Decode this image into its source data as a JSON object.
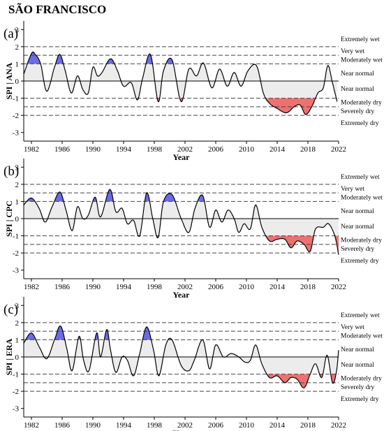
{
  "title": "SÃO FRANCISCO",
  "chart_data": [
    {
      "type": "line",
      "panel_label": "(a)",
      "ylabel": "SPI | ANA",
      "xlabel": "Year",
      "xlim": [
        1981,
        2022
      ],
      "ylim": [
        -3.5,
        3.5
      ],
      "xticks": [
        1982,
        1986,
        1990,
        1994,
        1998,
        2002,
        2006,
        2010,
        2014,
        2018,
        2022
      ],
      "yticks": [
        -3,
        -2,
        -1,
        0,
        1,
        2,
        3
      ],
      "thresholds": [
        2,
        1.5,
        1,
        -1,
        -1.5,
        -2
      ],
      "categories": [
        {
          "label": "Extremely wet",
          "y": 2.45
        },
        {
          "label": "Very wet",
          "y": 1.75
        },
        {
          "label": "Moderately wet",
          "y": 1.25
        },
        {
          "label": "Near normal",
          "y": 0.45
        },
        {
          "label": "Near normal",
          "y": -0.45
        },
        {
          "label": "Moderately dry",
          "y": -1.25
        },
        {
          "label": "Severely dry",
          "y": -1.75
        },
        {
          "label": "Extremely dry",
          "y": -2.45
        }
      ],
      "series": [
        {
          "x": [
            1981.0,
            1982.0,
            1982.5,
            1983.2,
            1984.0,
            1985.0,
            1985.7,
            1986.4,
            1987.2,
            1988.0,
            1988.7,
            1989.4,
            1990.0,
            1990.6,
            1991.2,
            1992.3,
            1993.2,
            1994.0,
            1995.0,
            1995.8,
            1996.5,
            1997.5,
            1998.5,
            1999.2,
            2000.3,
            2001.5,
            2002.5,
            2003.5,
            2004.4,
            2005.5,
            2006.5,
            2007.5,
            2008.4,
            2009.3,
            2010.2,
            2011.3,
            2012.2,
            2013.0,
            2014.0,
            2015.2,
            2016.2,
            2017.0,
            2017.7,
            2018.5,
            2019.3,
            2020.0,
            2020.6,
            2021.2,
            2021.8
          ],
          "values": [
            0.4,
            1.6,
            1.55,
            1.0,
            -0.6,
            0.8,
            1.55,
            0.6,
            -0.7,
            0.3,
            -0.5,
            -0.7,
            0.8,
            0.3,
            0.5,
            1.3,
            0.6,
            -0.3,
            -0.1,
            -1.1,
            0.2,
            1.55,
            -1.2,
            0.6,
            1.25,
            -1.2,
            0.7,
            0.3,
            1.05,
            -0.4,
            0.7,
            -0.3,
            0.5,
            -0.3,
            0.6,
            0.9,
            -0.7,
            -1.3,
            -1.6,
            -1.85,
            -1.5,
            -1.4,
            -1.95,
            -1.5,
            -0.7,
            -0.4,
            0.9,
            -0.1,
            -1.2
          ]
        }
      ]
    },
    {
      "type": "line",
      "panel_label": "(b)",
      "ylabel": "SPI | CPC",
      "xlabel": "Year",
      "xlim": [
        1981,
        2022
      ],
      "ylim": [
        -3.5,
        3.5
      ],
      "xticks": [
        1982,
        1986,
        1990,
        1994,
        1998,
        2002,
        2006,
        2010,
        2014,
        2018,
        2022
      ],
      "yticks": [
        -3,
        -2,
        -1,
        0,
        1,
        2,
        3
      ],
      "thresholds": [
        2,
        1.5,
        1,
        -1,
        -1.5,
        -2
      ],
      "categories": [
        {
          "label": "Extremely wet",
          "y": 2.45
        },
        {
          "label": "Very wet",
          "y": 1.75
        },
        {
          "label": "Moderately wet",
          "y": 1.25
        },
        {
          "label": "Near normal",
          "y": 0.45
        },
        {
          "label": "Near normal",
          "y": -0.45
        },
        {
          "label": "Moderately dry",
          "y": -1.25
        },
        {
          "label": "Severely dry",
          "y": -1.75
        },
        {
          "label": "Extremely dry",
          "y": -2.45
        }
      ],
      "series": [
        {
          "x": [
            1981.0,
            1982.0,
            1983.0,
            1983.8,
            1984.7,
            1985.7,
            1986.5,
            1987.3,
            1988.0,
            1988.7,
            1989.4,
            1990.3,
            1991.0,
            1992.2,
            1993.0,
            1993.8,
            1994.5,
            1995.3,
            1996.1,
            1997.0,
            1997.8,
            1998.5,
            1999.2,
            2000.3,
            2001.5,
            2002.5,
            2003.3,
            2004.3,
            2005.2,
            2006.0,
            2006.8,
            2007.6,
            2008.4,
            2009.0,
            2009.7,
            2010.5,
            2011.2,
            2012.0,
            2013.0,
            2014.0,
            2015.0,
            2015.8,
            2016.6,
            2017.5,
            2018.3,
            2019.0,
            2020.0,
            2020.7,
            2021.5,
            2022.0
          ],
          "values": [
            0.8,
            1.2,
            0.6,
            -0.2,
            0.7,
            1.55,
            0.5,
            -0.7,
            0.7,
            0.0,
            0.2,
            1.25,
            0.1,
            1.7,
            0.4,
            0.6,
            -0.3,
            -0.1,
            -1.0,
            1.5,
            0.0,
            -1.1,
            1.0,
            1.4,
            0.0,
            -0.8,
            0.6,
            1.35,
            -0.5,
            0.5,
            -0.2,
            0.5,
            0.0,
            -0.8,
            -0.3,
            -0.6,
            0.8,
            -0.5,
            -1.3,
            -1.2,
            -1.2,
            -1.7,
            -1.3,
            -1.5,
            -1.9,
            -0.6,
            -0.5,
            -0.3,
            -1.0,
            -2.1
          ]
        }
      ]
    },
    {
      "type": "line",
      "panel_label": "(c)",
      "ylabel": "SPI | ERA",
      "xlabel": "Year",
      "xlim": [
        1981,
        2022
      ],
      "ylim": [
        -3.5,
        3.5
      ],
      "xticks": [
        1982,
        1986,
        1990,
        1994,
        1998,
        2002,
        2006,
        2010,
        2014,
        2018,
        2022
      ],
      "yticks": [
        -3,
        -2,
        -1,
        0,
        1,
        2,
        3
      ],
      "thresholds": [
        2,
        1.5,
        1,
        -1,
        -1.5,
        -2
      ],
      "categories": [
        {
          "label": "Extremely wet",
          "y": 2.45
        },
        {
          "label": "Very wet",
          "y": 1.75
        },
        {
          "label": "Moderately wet",
          "y": 1.25
        },
        {
          "label": "Near normal",
          "y": 0.45
        },
        {
          "label": "Near normal",
          "y": -0.45
        },
        {
          "label": "Moderately dry",
          "y": -1.25
        },
        {
          "label": "Severely dry",
          "y": -1.75
        },
        {
          "label": "Extremely dry",
          "y": -2.45
        }
      ],
      "series": [
        {
          "x": [
            1981.0,
            1982.0,
            1983.0,
            1984.0,
            1985.0,
            1985.8,
            1986.6,
            1987.3,
            1988.2,
            1988.8,
            1989.5,
            1990.5,
            1991.0,
            1991.8,
            1992.3,
            1993.0,
            1993.8,
            1994.5,
            1995.3,
            1996.1,
            1997.0,
            1997.9,
            1998.6,
            1999.5,
            2000.3,
            2001.5,
            2002.5,
            2003.2,
            2004.3,
            2005.2,
            2006.0,
            2007.0,
            2008.0,
            2009.0,
            2009.8,
            2010.5,
            2011.2,
            2012.0,
            2013.0,
            2014.0,
            2015.0,
            2015.8,
            2016.6,
            2017.5,
            2018.3,
            2019.0,
            2019.8,
            2020.5,
            2021.2,
            2021.7,
            2022.0
          ],
          "values": [
            0.8,
            1.4,
            0.6,
            -0.1,
            1.0,
            1.8,
            0.5,
            -0.8,
            1.2,
            -0.2,
            -0.8,
            1.4,
            0.0,
            1.6,
            0.4,
            -0.9,
            0.0,
            -0.2,
            -1.1,
            0.2,
            1.75,
            0.4,
            -1.1,
            0.7,
            1.0,
            -0.5,
            -0.8,
            -0.2,
            1.0,
            -0.7,
            0.7,
            0.0,
            0.2,
            0.0,
            -0.3,
            -0.2,
            0.7,
            -0.4,
            -1.2,
            -1.1,
            -1.5,
            -1.2,
            -1.3,
            -1.8,
            -1.0,
            -0.4,
            -1.2,
            0.1,
            -1.5,
            -0.9,
            0.4
          ]
        }
      ]
    }
  ]
}
